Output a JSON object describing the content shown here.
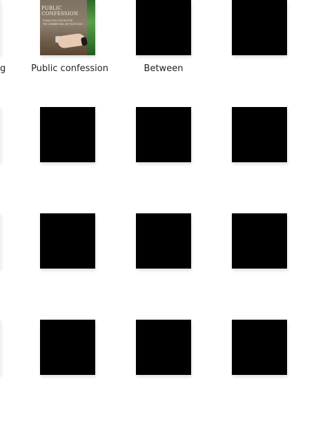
{
  "grid": {
    "rows": [
      {
        "left_label": "g",
        "items": [
          {
            "label": "Public confession",
            "thumb": "photo"
          },
          {
            "label": "Between",
            "thumb": "black"
          },
          {
            "label": "",
            "thumb": "black"
          }
        ]
      },
      {
        "left_label": "",
        "items": [
          {
            "label": "",
            "thumb": "black"
          },
          {
            "label": "",
            "thumb": "black"
          },
          {
            "label": "",
            "thumb": "black"
          }
        ]
      },
      {
        "left_label": "",
        "items": [
          {
            "label": "",
            "thumb": "black"
          },
          {
            "label": "",
            "thumb": "black"
          },
          {
            "label": "",
            "thumb": "black"
          }
        ]
      },
      {
        "left_label": "",
        "items": [
          {
            "label": "",
            "thumb": "black"
          },
          {
            "label": "",
            "thumb": "black"
          },
          {
            "label": "",
            "thumb": "black"
          }
        ]
      }
    ]
  },
  "photo_overlay": {
    "title": "PUBLIC CONFESSION",
    "lines": [
      "PLEASE PUSH THE BUTTON",
      "THE CHAMBER WILL BE YOUR VOICE"
    ]
  }
}
